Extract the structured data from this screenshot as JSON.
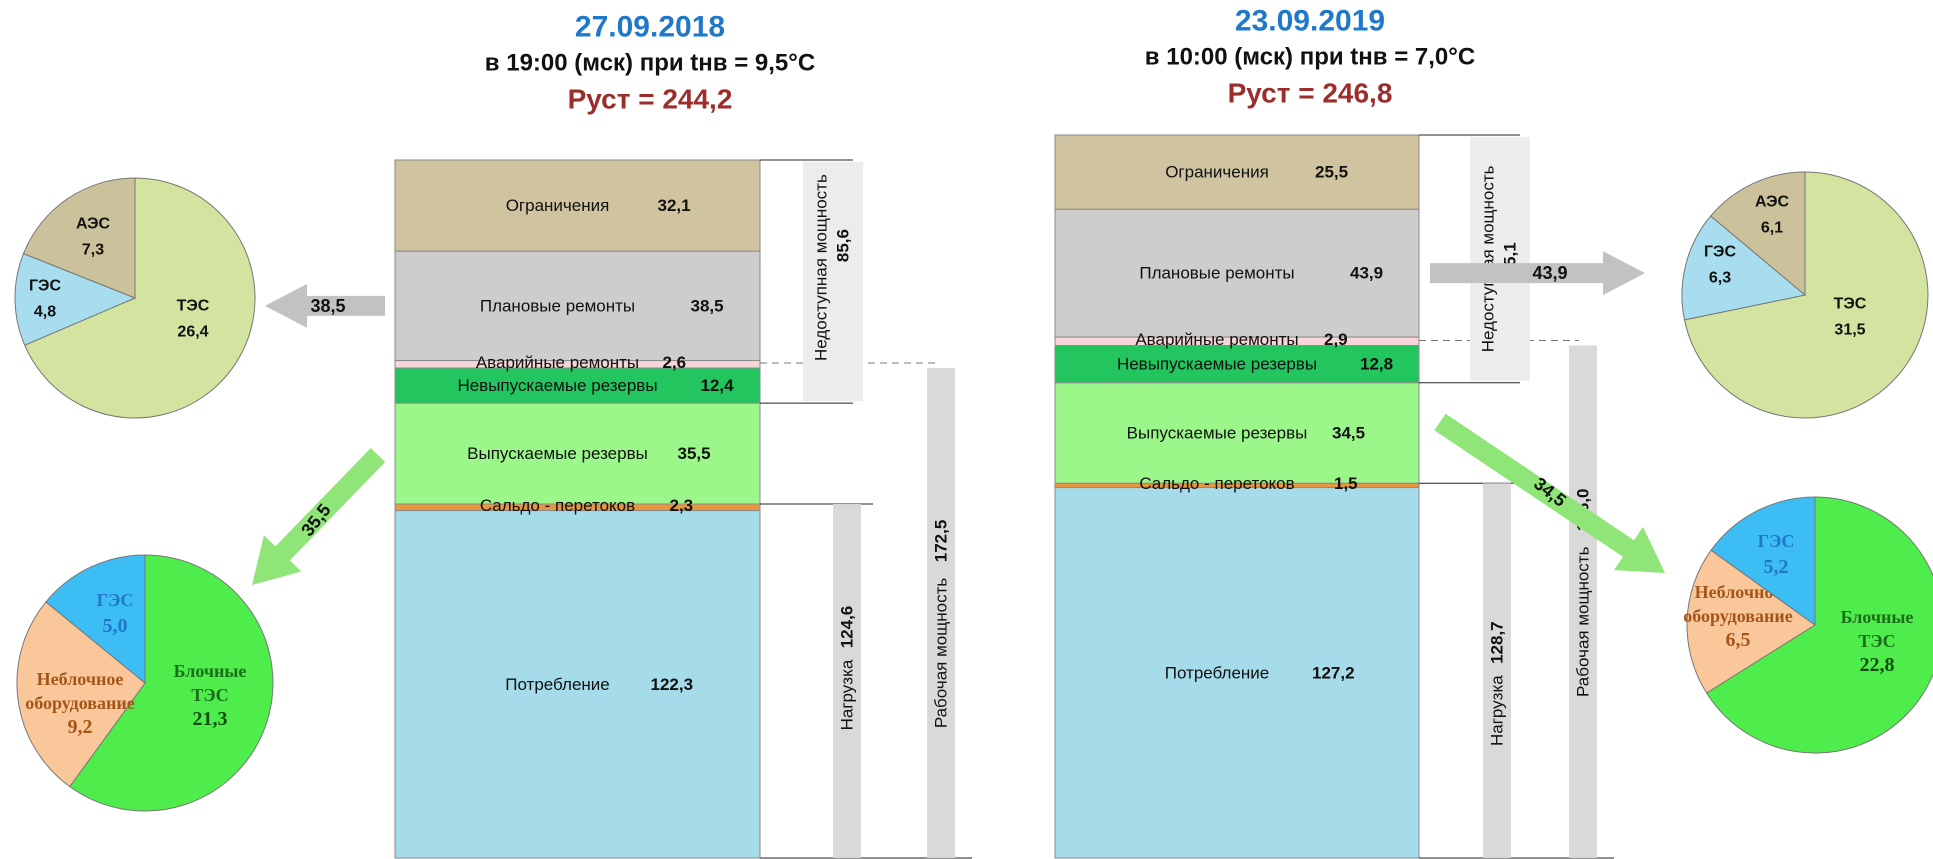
{
  "colors": {
    "date": "#1f78c8",
    "pust": "#9b2d2b",
    "ogr": "#cfc49f",
    "plan": "#cdcdcd",
    "avar": "#f6d6d6",
    "nevyp": "#22c55e",
    "vyp": "#9bf78a",
    "saldo": "#e9963e",
    "potr": "#a6dcea",
    "pie_tes": "#d3e3a0",
    "pie_ges": "#a8dcef",
    "pie_aes": "#cbc29b",
    "pie2_blk": "#4eed4b",
    "pie2_ges": "#3cbdf4",
    "pie2_neb": "#f9c79a",
    "gray_bar": "#d9d9d9",
    "gray_arrow": "#c2c2c2",
    "green_arrow": "#8fe577"
  },
  "chart_data": [
    {
      "type": "bar",
      "stacked": true,
      "title": "27.09.2018",
      "subtitle": "в 19:00 (мск) при tнв = 9,5°С",
      "pust_label": "Руст = 244,2",
      "segments": [
        {
          "name": "Ограничения",
          "value": 32.1,
          "value_label": "32,1",
          "color_key": "ogr"
        },
        {
          "name": "Плановые ремонты",
          "value": 38.5,
          "value_label": "38,5",
          "color_key": "plan"
        },
        {
          "name": "Аварийные ремонты",
          "value": 2.6,
          "value_label": "2,6",
          "color_key": "avar"
        },
        {
          "name": "Невыпускаемые резервы",
          "value": 12.4,
          "value_label": "12,4",
          "color_key": "nevyp"
        },
        {
          "name": "Выпускаемые резервы",
          "value": 35.5,
          "value_label": "35,5",
          "color_key": "vyp"
        },
        {
          "name": "Сальдо - перетоков",
          "value": 2.3,
          "value_label": "2,3",
          "color_key": "saldo"
        },
        {
          "name": "Потребление",
          "value": 122.3,
          "value_label": "122,3",
          "color_key": "potr"
        }
      ],
      "brackets": [
        {
          "label": "Недоступная мощность",
          "value_label": "85,6",
          "value": 85.6
        },
        {
          "label": "Рабочая мощность",
          "value_label": "172,5",
          "value": 172.5
        },
        {
          "label": "Нагрузка",
          "value_label": "124,6",
          "value": 124.6
        }
      ],
      "arrows": [
        {
          "value_label": "38,5",
          "value": 38.5
        },
        {
          "value_label": "35,5",
          "value": 35.5
        }
      ],
      "pies": [
        {
          "type": "pie",
          "slices": [
            {
              "name": "ТЭС",
              "value": 26.4,
              "value_label": "26,4",
              "color_key": "pie_tes"
            },
            {
              "name": "ГЭС",
              "value": 4.8,
              "value_label": "4,8",
              "color_key": "pie_ges"
            },
            {
              "name": "АЭС",
              "value": 7.3,
              "value_label": "7,3",
              "color_key": "pie_aes"
            }
          ]
        },
        {
          "type": "pie",
          "slices": [
            {
              "name": "Блочные ТЭС",
              "value": 21.3,
              "value_label": "21,3",
              "color_key": "pie2_blk"
            },
            {
              "name": "Неблочное оборудование",
              "value": 9.2,
              "value_label": "9,2",
              "color_key": "pie2_neb"
            },
            {
              "name": "ГЭС",
              "value": 5.0,
              "value_label": "5,0",
              "color_key": "pie2_ges"
            }
          ]
        }
      ]
    },
    {
      "type": "bar",
      "stacked": true,
      "title": "23.09.2019",
      "subtitle": "в 10:00 (мск) при tнв =  7,0°С",
      "pust_label": "Руст = 246,8",
      "segments": [
        {
          "name": "Ограничения",
          "value": 25.5,
          "value_label": "25,5",
          "color_key": "ogr"
        },
        {
          "name": "Плановые ремонты",
          "value": 43.9,
          "value_label": "43,9",
          "color_key": "plan"
        },
        {
          "name": "Аварийные ремонты",
          "value": 2.9,
          "value_label": "2,9",
          "color_key": "avar"
        },
        {
          "name": "Невыпускаемые резервы",
          "value": 12.8,
          "value_label": "12,8",
          "color_key": "nevyp"
        },
        {
          "name": "Выпускаемые резервы",
          "value": 34.5,
          "value_label": "34,5",
          "color_key": "vyp"
        },
        {
          "name": "Сальдо - перетоков",
          "value": 1.5,
          "value_label": "1,5",
          "color_key": "saldo"
        },
        {
          "name": "Потребление",
          "value": 127.2,
          "value_label": "127,2",
          "color_key": "potr"
        }
      ],
      "brackets": [
        {
          "label": "Недоступная мощность",
          "value_label": "85,1",
          "value": 85.1
        },
        {
          "label": "Рабочая мощность",
          "value_label": "176,0",
          "value": 176.0
        },
        {
          "label": "Нагрузка",
          "value_label": "128,7",
          "value": 128.7
        }
      ],
      "arrows": [
        {
          "value_label": "43,9",
          "value": 43.9
        },
        {
          "value_label": "34,5",
          "value": 34.5
        }
      ],
      "pies": [
        {
          "type": "pie",
          "slices": [
            {
              "name": "ТЭС",
              "value": 31.5,
              "value_label": "31,5",
              "color_key": "pie_tes"
            },
            {
              "name": "ГЭС",
              "value": 6.3,
              "value_label": "6,3",
              "color_key": "pie_ges"
            },
            {
              "name": "АЭС",
              "value": 6.1,
              "value_label": "6,1",
              "color_key": "pie_aes"
            }
          ]
        },
        {
          "type": "pie",
          "slices": [
            {
              "name": "Блочные ТЭС",
              "value": 22.8,
              "value_label": "22,8",
              "color_key": "pie2_blk"
            },
            {
              "name": "Неблочное оборудование",
              "value": 6.5,
              "value_label": "6,5",
              "color_key": "pie2_neb"
            },
            {
              "name": "ГЭС",
              "value": 5.2,
              "value_label": "5,2",
              "color_key": "pie2_ges"
            }
          ]
        }
      ]
    }
  ]
}
